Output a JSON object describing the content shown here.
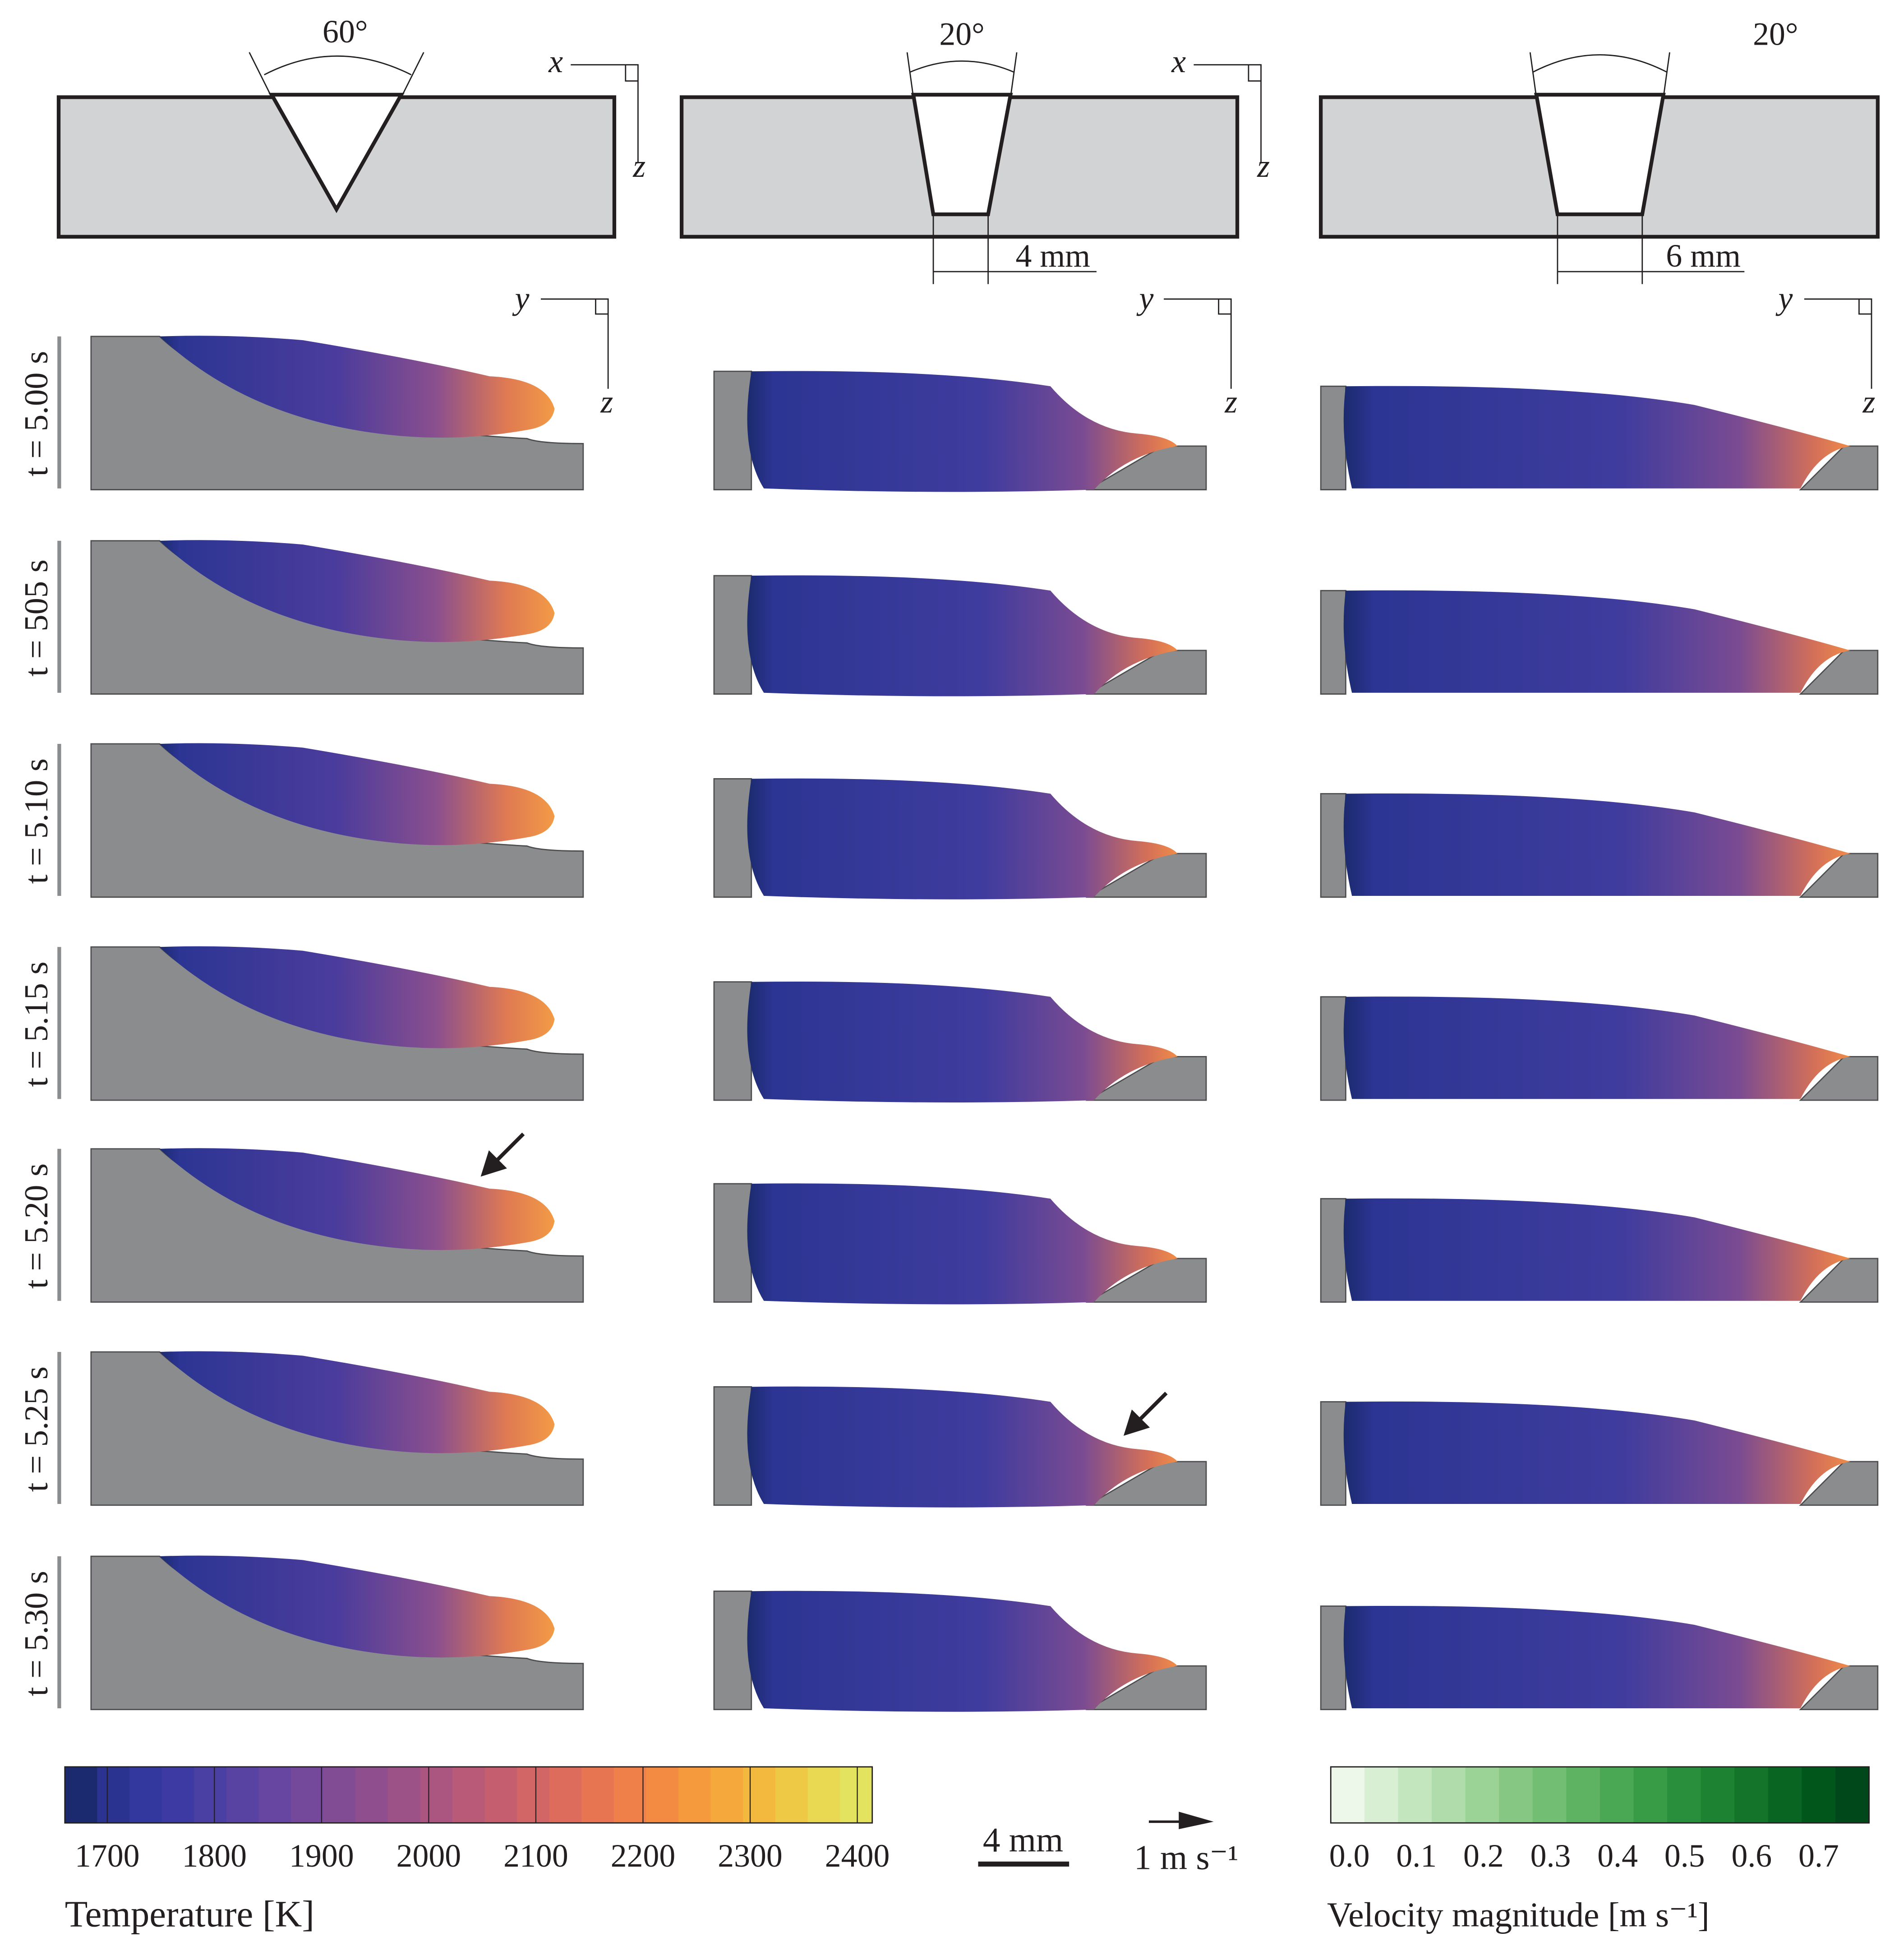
{
  "schematics": [
    {
      "angle": "60°"
    },
    {
      "angle": "20°",
      "gap": "4 mm"
    },
    {
      "angle": "20°",
      "gap": "6 mm"
    }
  ],
  "axis_labels": {
    "x": "x",
    "y": "y",
    "z": "z"
  },
  "time_labels": [
    "t = 5.00 s",
    "t = 505 s",
    "t = 5.10 s",
    "t = 5.15 s",
    "t = 5.20 s",
    "t = 5.25 s",
    "t = 5.30 s"
  ],
  "temperature_colorbar": {
    "title": "Temperature [K]",
    "ticks": [
      1700,
      1800,
      1900,
      2000,
      2100,
      2200,
      2300,
      2400
    ]
  },
  "scale_bar": "4 mm",
  "velocity_reference": "1 m s⁻¹",
  "velocity_colorbar": {
    "title": "Velocity magnitude [m s⁻¹]",
    "ticks": [
      "0.0",
      "0.1",
      "0.2",
      "0.3",
      "0.4",
      "0.5",
      "0.6",
      "0.7"
    ]
  }
}
